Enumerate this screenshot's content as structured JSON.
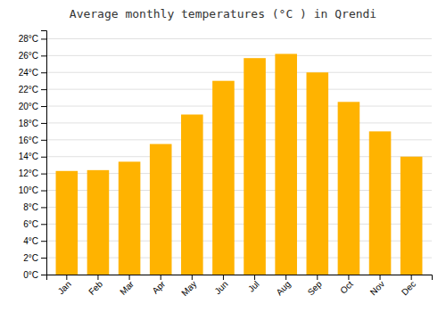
{
  "chart_data": {
    "type": "bar",
    "title": "Average monthly temperatures (°C ) in Qrendi",
    "categories": [
      "Jan",
      "Feb",
      "Mar",
      "Apr",
      "May",
      "Jun",
      "Jul",
      "Aug",
      "Sep",
      "Oct",
      "Nov",
      "Dec"
    ],
    "values": [
      12.3,
      12.4,
      13.4,
      15.5,
      19.0,
      23.0,
      25.7,
      26.2,
      24.0,
      20.5,
      17.0,
      14.0
    ],
    "color": "#FFB300",
    "ylim": [
      0,
      29
    ],
    "yticks": [
      {
        "value": 0,
        "label": "0°C"
      },
      {
        "value": 2,
        "label": "2°C"
      },
      {
        "value": 4,
        "label": "4°C"
      },
      {
        "value": 6,
        "label": "6°C"
      },
      {
        "value": 8,
        "label": "8°C"
      },
      {
        "value": 10,
        "label": "10°C"
      },
      {
        "value": 12,
        "label": "12°C"
      },
      {
        "value": 14,
        "label": "14°C"
      },
      {
        "value": 16,
        "label": "16°C"
      },
      {
        "value": 18,
        "label": "18°C"
      },
      {
        "value": 20,
        "label": "20°C"
      },
      {
        "value": 22,
        "label": "22°C"
      },
      {
        "value": 24,
        "label": "24°C"
      },
      {
        "value": 26,
        "label": "26°C"
      },
      {
        "value": 28,
        "label": "28°C"
      }
    ],
    "grid": true
  }
}
